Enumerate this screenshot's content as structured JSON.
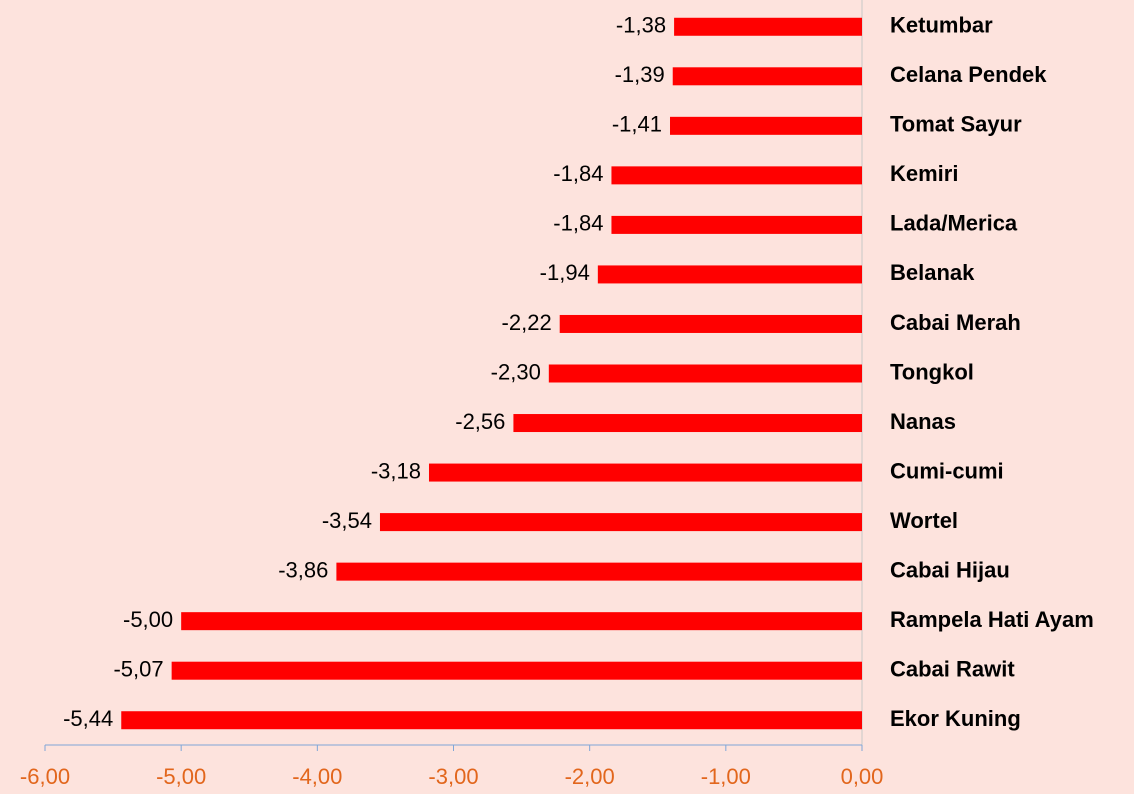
{
  "chart_data": {
    "type": "bar",
    "orientation": "horizontal",
    "categories": [
      "Ketumbar",
      "Celana Pendek",
      "Tomat Sayur",
      "Kemiri",
      "Lada/Merica",
      "Belanak",
      "Cabai Merah",
      "Tongkol",
      "Nanas",
      "Cumi-cumi",
      "Wortel",
      "Cabai Hijau",
      "Rampela Hati Ayam",
      "Cabai Rawit",
      "Ekor Kuning"
    ],
    "values": [
      -1.38,
      -1.39,
      -1.41,
      -1.84,
      -1.84,
      -1.94,
      -2.22,
      -2.3,
      -2.56,
      -3.18,
      -3.54,
      -3.86,
      -5.0,
      -5.07,
      -5.44
    ],
    "value_labels": [
      "-1,38",
      "-1,39",
      "-1,41",
      "-1,84",
      "-1,84",
      "-1,94",
      "-2,22",
      "-2,30",
      "-2,56",
      "-3,18",
      "-3,54",
      "-3,86",
      "-5,00",
      "-5,07",
      "-5,44"
    ],
    "color": "#ff0000",
    "xlim": [
      -6,
      0
    ],
    "xticks": [
      {
        "value": -6,
        "label": "-6,00"
      },
      {
        "value": -5,
        "label": "-5,00"
      },
      {
        "value": -4,
        "label": "-4,00"
      },
      {
        "value": -3,
        "label": "-3,00"
      },
      {
        "value": -2,
        "label": "-2,00"
      },
      {
        "value": -1,
        "label": "-1,00"
      },
      {
        "value": 0,
        "label": "0,00"
      }
    ]
  }
}
